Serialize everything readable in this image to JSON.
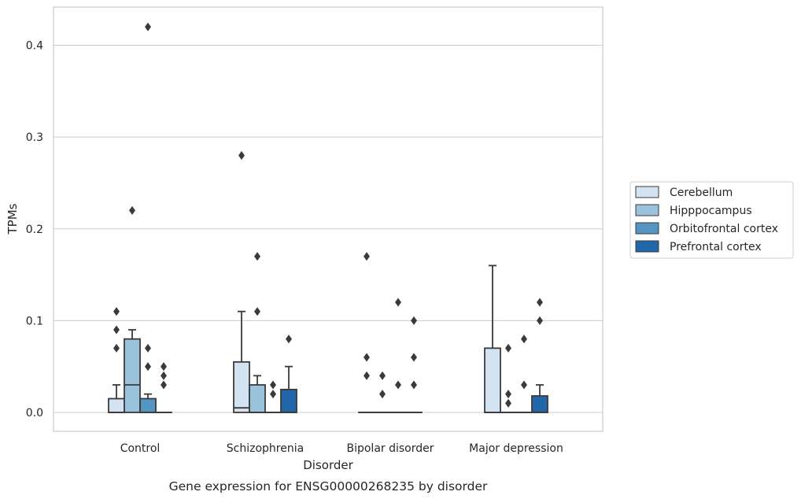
{
  "chart_data": {
    "type": "box",
    "title": "Gene expression for ENSG00000268235 by disorder",
    "xlabel": "Disorder",
    "ylabel": "TPMs",
    "categories": [
      "Control",
      "Schizophrenia",
      "Bipolar disorder",
      "Major depression"
    ],
    "ylim": [
      -0.021,
      0.442
    ],
    "yticks": [
      0.0,
      0.1,
      0.2,
      0.3,
      0.4
    ],
    "ytick_labels": [
      "0.0",
      "0.1",
      "0.2",
      "0.3",
      "0.4"
    ],
    "grid": "horizontal",
    "legend_position": "center-right",
    "series": [
      {
        "name": "Cerebellum",
        "color": "#d3e3f1",
        "boxes": [
          {
            "q1": 0.0,
            "median": 0.0,
            "q3": 0.015,
            "whisker_low": 0.0,
            "whisker_high": 0.03,
            "outliers": [
              0.07,
              0.09,
              0.11
            ]
          },
          {
            "q1": 0.0,
            "median": 0.005,
            "q3": 0.055,
            "whisker_low": 0.0,
            "whisker_high": 0.11,
            "outliers": [
              0.28
            ]
          },
          {
            "q1": 0.0,
            "median": 0.0,
            "q3": 0.0,
            "whisker_low": 0.0,
            "whisker_high": 0.0,
            "outliers": [
              0.04,
              0.06,
              0.17
            ]
          },
          {
            "q1": 0.0,
            "median": 0.0,
            "q3": 0.07,
            "whisker_low": 0.0,
            "whisker_high": 0.16,
            "outliers": []
          }
        ]
      },
      {
        "name": "Hipppocampus",
        "color": "#9ac2da",
        "boxes": [
          {
            "q1": 0.0,
            "median": 0.03,
            "q3": 0.08,
            "whisker_low": 0.0,
            "whisker_high": 0.09,
            "outliers": [
              0.22
            ]
          },
          {
            "q1": 0.0,
            "median": 0.0,
            "q3": 0.03,
            "whisker_low": 0.0,
            "whisker_high": 0.04,
            "outliers": [
              0.11,
              0.17
            ]
          },
          {
            "q1": 0.0,
            "median": 0.0,
            "q3": 0.0,
            "whisker_low": 0.0,
            "whisker_high": 0.0,
            "outliers": [
              0.02,
              0.04
            ]
          },
          {
            "q1": 0.0,
            "median": 0.0,
            "q3": 0.0,
            "whisker_low": 0.0,
            "whisker_high": 0.0,
            "outliers": [
              0.01,
              0.02,
              0.07
            ]
          }
        ]
      },
      {
        "name": "Orbitofrontal cortex",
        "color": "#5495c4",
        "boxes": [
          {
            "q1": 0.0,
            "median": 0.0,
            "q3": 0.015,
            "whisker_low": 0.0,
            "whisker_high": 0.02,
            "outliers": [
              0.05,
              0.07,
              0.42
            ]
          },
          {
            "q1": 0.0,
            "median": 0.0,
            "q3": 0.0,
            "whisker_low": 0.0,
            "whisker_high": 0.0,
            "outliers": [
              0.02,
              0.03
            ]
          },
          {
            "q1": 0.0,
            "median": 0.0,
            "q3": 0.0,
            "whisker_low": 0.0,
            "whisker_high": 0.0,
            "outliers": [
              0.03,
              0.12
            ]
          },
          {
            "q1": 0.0,
            "median": 0.0,
            "q3": 0.0,
            "whisker_low": 0.0,
            "whisker_high": 0.0,
            "outliers": [
              0.03,
              0.08
            ]
          }
        ]
      },
      {
        "name": "Prefrontal cortex",
        "color": "#2166a8",
        "boxes": [
          {
            "q1": 0.0,
            "median": 0.0,
            "q3": 0.0,
            "whisker_low": 0.0,
            "whisker_high": 0.0,
            "outliers": [
              0.03,
              0.04,
              0.05
            ]
          },
          {
            "q1": 0.0,
            "median": 0.0,
            "q3": 0.025,
            "whisker_low": 0.0,
            "whisker_high": 0.05,
            "outliers": [
              0.08
            ]
          },
          {
            "q1": 0.0,
            "median": 0.0,
            "q3": 0.0,
            "whisker_low": 0.0,
            "whisker_high": 0.0,
            "outliers": [
              0.03,
              0.06,
              0.1
            ]
          },
          {
            "q1": 0.0,
            "median": 0.0,
            "q3": 0.018,
            "whisker_low": 0.0,
            "whisker_high": 0.03,
            "outliers": [
              0.1,
              0.12
            ]
          }
        ]
      }
    ]
  }
}
